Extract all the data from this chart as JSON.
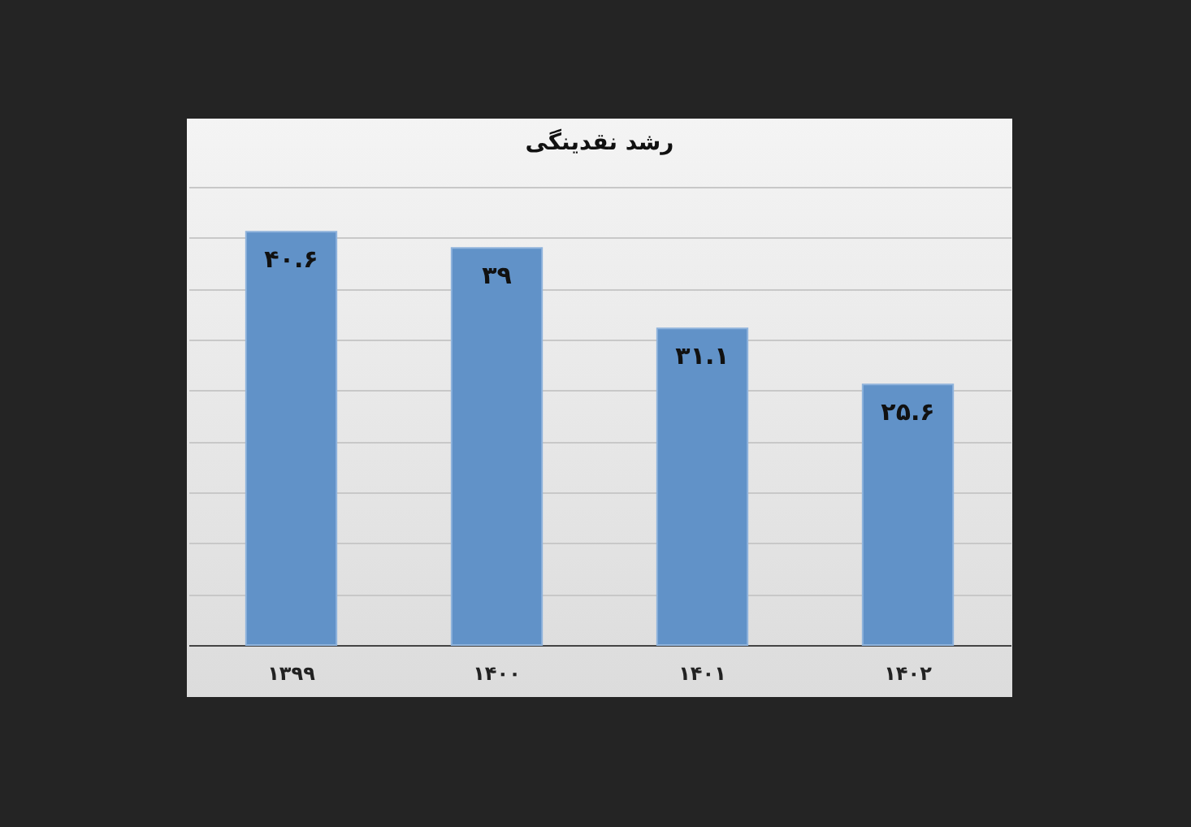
{
  "chart_data": {
    "type": "bar",
    "title": "رشد نقدینگی",
    "categories": [
      "۱۳۹۹",
      "۱۴۰۰",
      "۱۴۰۱",
      "۱۴۰۲"
    ],
    "values": [
      40.6,
      39,
      31.1,
      25.6
    ],
    "value_labels": [
      "۴۰.۶",
      "۳۹",
      "۳۱.۱",
      "۲۵.۶"
    ],
    "color": "#6192c8",
    "grid": "y",
    "tick_labels": "x"
  }
}
